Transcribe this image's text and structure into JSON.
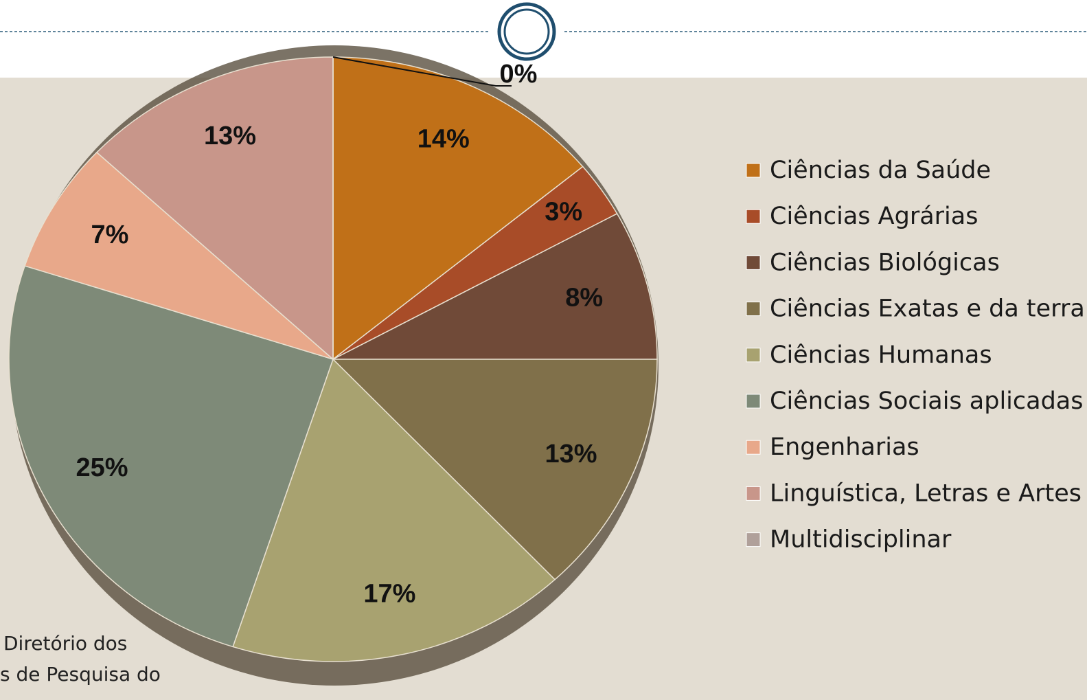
{
  "chart_data": {
    "type": "pie",
    "categories": [
      "Ciências da Saúde",
      "Ciências Agrárias",
      "Ciências Biológicas",
      "Ciências Exatas e da terra",
      "Ciências Humanas",
      "Ciências Sociais aplicadas",
      "Engenharias",
      "Linguística, Letras e Artes",
      "Multidisciplinar"
    ],
    "values": [
      14,
      3,
      8,
      13,
      17,
      25,
      7,
      13,
      0
    ],
    "value_labels": [
      "14%",
      "3%",
      "8%",
      "13%",
      "17%",
      "25%",
      "7%",
      "13%",
      "0%"
    ],
    "colors": [
      "#c07018",
      "#a84c28",
      "#704a38",
      "#80704a",
      "#a8a270",
      "#7e8a78",
      "#e8a88a",
      "#c8968a",
      "#b0a09a"
    ],
    "legend": "right",
    "source_lines": [
      "Diretório dos",
      "s de Pesquisa do"
    ]
  }
}
